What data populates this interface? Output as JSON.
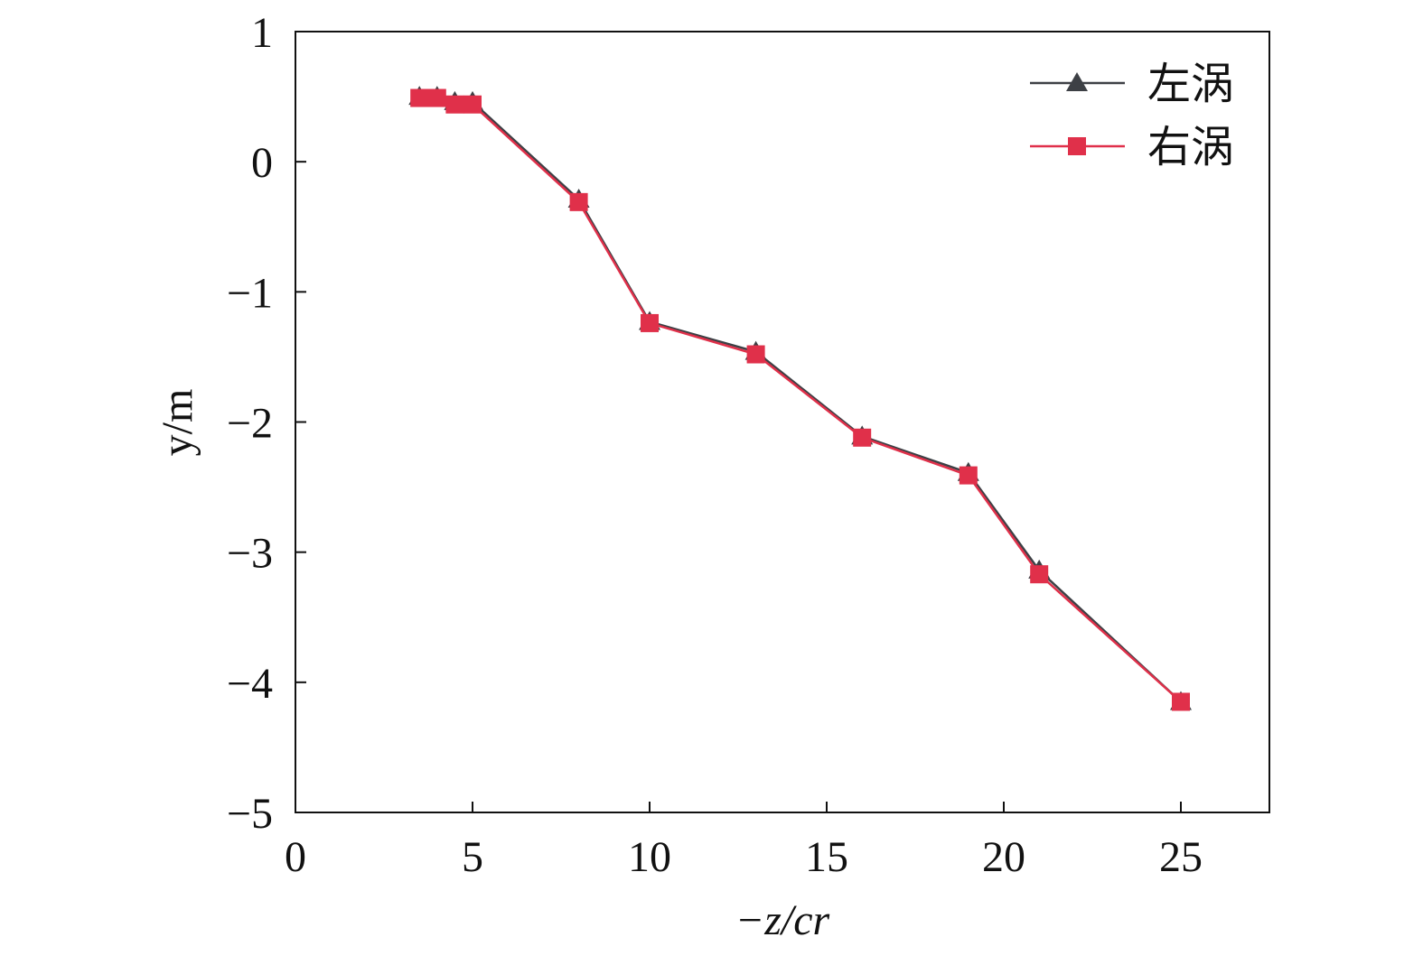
{
  "chart_data": {
    "type": "line",
    "x_label": "−z/cr",
    "y_label": "y/m",
    "xlim": [
      0,
      27.5
    ],
    "ylim": [
      -5,
      1
    ],
    "xticks": [
      0,
      5,
      10,
      15,
      20,
      25
    ],
    "yticks": [
      {
        "value": -5,
        "label": "−5"
      },
      {
        "value": -4,
        "label": "−4"
      },
      {
        "value": -3,
        "label": "−3"
      },
      {
        "value": -2,
        "label": "−2"
      },
      {
        "value": -1,
        "label": "−1"
      },
      0,
      1
    ],
    "legend": "upper right",
    "series": [
      {
        "name": "左涡",
        "color": "#3d4045",
        "marker": "triangle",
        "x": [
          3.5,
          4,
          4.5,
          5,
          8,
          10,
          13,
          16,
          19,
          21,
          25
        ],
        "values": [
          0.5,
          0.5,
          0.46,
          0.46,
          -0.29,
          -1.23,
          -1.46,
          -2.11,
          -2.39,
          -3.14,
          -4.15
        ]
      },
      {
        "name": "右涡",
        "color": "#e0304a",
        "marker": "square",
        "x": [
          3.5,
          4,
          4.5,
          5,
          8,
          10,
          13,
          16,
          19,
          21,
          25
        ],
        "values": [
          0.49,
          0.49,
          0.44,
          0.44,
          -0.31,
          -1.24,
          -1.48,
          -2.12,
          -2.41,
          -3.17,
          -4.15
        ]
      }
    ]
  }
}
